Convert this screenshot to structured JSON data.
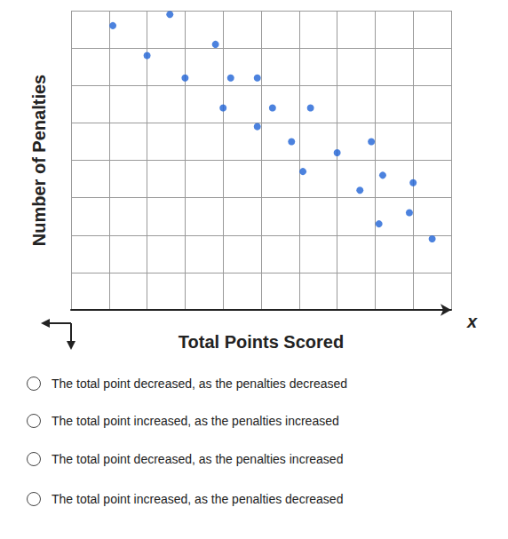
{
  "chart_data": {
    "type": "scatter",
    "x_label": "Total Points Scored",
    "y_label": "Number of Penalties",
    "annotations": [
      "x"
    ],
    "x": [
      1.1,
      2.6,
      2.0,
      3.8,
      3.0,
      4.2,
      4.9,
      4.0,
      5.3,
      6.3,
      4.9,
      5.8,
      7.0,
      7.9,
      6.1,
      7.6,
      8.2,
      9.0,
      8.1,
      8.9,
      9.5
    ],
    "values": [
      7.6,
      7.9,
      6.8,
      7.1,
      6.2,
      6.2,
      6.2,
      5.4,
      5.4,
      5.4,
      4.9,
      4.5,
      4.2,
      4.5,
      3.7,
      3.2,
      3.6,
      3.4,
      2.3,
      2.6,
      1.9
    ],
    "color": "#1f63d6",
    "marker": "circle",
    "xlim": [
      0,
      10
    ],
    "xticks": [
      0,
      1,
      2,
      3,
      4,
      5,
      6,
      7,
      8,
      9,
      10
    ],
    "ylim": [
      0,
      8
    ],
    "yticks": [
      0,
      1,
      2,
      3,
      4,
      5,
      6,
      7,
      8
    ],
    "grid": true,
    "tick_labels": false
  },
  "options": [
    "The total point decreased, as the penalties decreased",
    "The total point increased, as the penalties increased",
    "The total point decreased, as the penalties increased",
    "The total point increased, as the penalties decreased"
  ]
}
